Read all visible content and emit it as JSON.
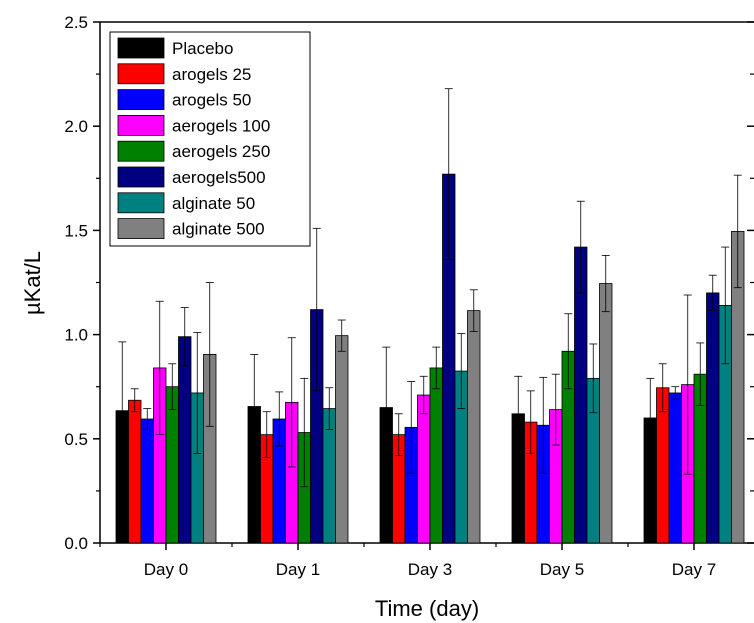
{
  "chart_data": {
    "type": "bar",
    "xlabel": "Time (day)",
    "ylabel": "µKat/L",
    "ylim": [
      0,
      2.5
    ],
    "yticks": [
      "0.0",
      "0.5",
      "1.0",
      "1.5",
      "2.0",
      "2.5"
    ],
    "categories": [
      "Day 0",
      "Day 1",
      "Day 3",
      "Day 5",
      "Day 7"
    ],
    "legend_position": "top-left",
    "series": [
      {
        "name": "Placebo",
        "color": "#000000",
        "values": [
          0.635,
          0.655,
          0.65,
          0.62,
          0.6
        ],
        "errors": [
          0.33,
          0.25,
          0.29,
          0.18,
          0.19
        ]
      },
      {
        "name": "arogels 25",
        "color": "#ff0000",
        "values": [
          0.685,
          0.52,
          0.52,
          0.58,
          0.745
        ],
        "errors": [
          0.055,
          0.11,
          0.1,
          0.15,
          0.115
        ]
      },
      {
        "name": "arogels 50",
        "color": "#0000ff",
        "values": [
          0.595,
          0.595,
          0.555,
          0.565,
          0.72
        ],
        "errors": [
          0.05,
          0.13,
          0.22,
          0.23,
          0.03
        ]
      },
      {
        "name": "aerogels 100",
        "color": "#ff00ff",
        "values": [
          0.84,
          0.675,
          0.71,
          0.64,
          0.76
        ],
        "errors": [
          0.32,
          0.31,
          0.09,
          0.17,
          0.43
        ]
      },
      {
        "name": "aerogels 250",
        "color": "#008000",
        "values": [
          0.75,
          0.53,
          0.84,
          0.92,
          0.81
        ],
        "errors": [
          0.11,
          0.26,
          0.1,
          0.18,
          0.15
        ]
      },
      {
        "name": "aerogels500",
        "color": "#000080",
        "values": [
          0.99,
          1.12,
          1.77,
          1.42,
          1.2
        ],
        "errors": [
          0.14,
          0.39,
          0.41,
          0.22,
          0.085
        ]
      },
      {
        "name": "alginate 50",
        "color": "#008080",
        "values": [
          0.72,
          0.645,
          0.825,
          0.79,
          1.14
        ],
        "errors": [
          0.29,
          0.1,
          0.18,
          0.165,
          0.28
        ]
      },
      {
        "name": "alginate 500",
        "color": "#808080",
        "values": [
          0.905,
          0.995,
          1.115,
          1.245,
          1.495
        ],
        "errors": [
          0.345,
          0.075,
          0.1,
          0.135,
          0.27
        ]
      }
    ]
  }
}
